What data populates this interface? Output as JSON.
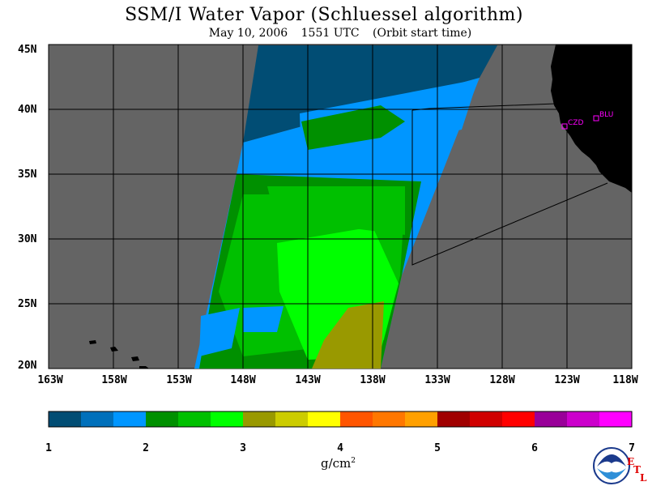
{
  "title": "SSM/I Water Vapor (Schluessel algorithm)",
  "subtitle": {
    "date": "May 10, 2006",
    "time": "1551 UTC",
    "note": "(Orbit start time)"
  },
  "map": {
    "lon_range": [
      -163,
      -118
    ],
    "lat_range": [
      20,
      45
    ],
    "lat_labels": [
      "45N",
      "40N",
      "35N",
      "30N",
      "25N",
      "20N"
    ],
    "lon_labels": [
      "163W",
      "158W",
      "153W",
      "148W",
      "143W",
      "138W",
      "133W",
      "128W",
      "123W",
      "118W"
    ],
    "grid": true,
    "stations": [
      {
        "id": "CZD",
        "lon": -122.9,
        "lat": 38.6
      },
      {
        "id": "BLU",
        "lon": -120.7,
        "lat": 39.3
      }
    ]
  },
  "colorbar": {
    "ticks": [
      "1",
      "2",
      "3",
      "4",
      "5",
      "6",
      "7"
    ],
    "units": "g/cm",
    "units_sup": "2",
    "colors": [
      "#014d74",
      "#0070bb",
      "#0096ff",
      "#009000",
      "#00c000",
      "#00ff00",
      "#999900",
      "#cccc00",
      "#ffff00",
      "#ff5500",
      "#ff7700",
      "#ffa000",
      "#a00000",
      "#d00000",
      "#ff0000",
      "#990099",
      "#cc00cc",
      "#ff00ff"
    ]
  },
  "logo": {
    "agency": "NOAA",
    "lab_letters": [
      "E",
      "T",
      "L"
    ]
  },
  "colors": {
    "land_gray": "#646464",
    "land_black": "#000000"
  }
}
